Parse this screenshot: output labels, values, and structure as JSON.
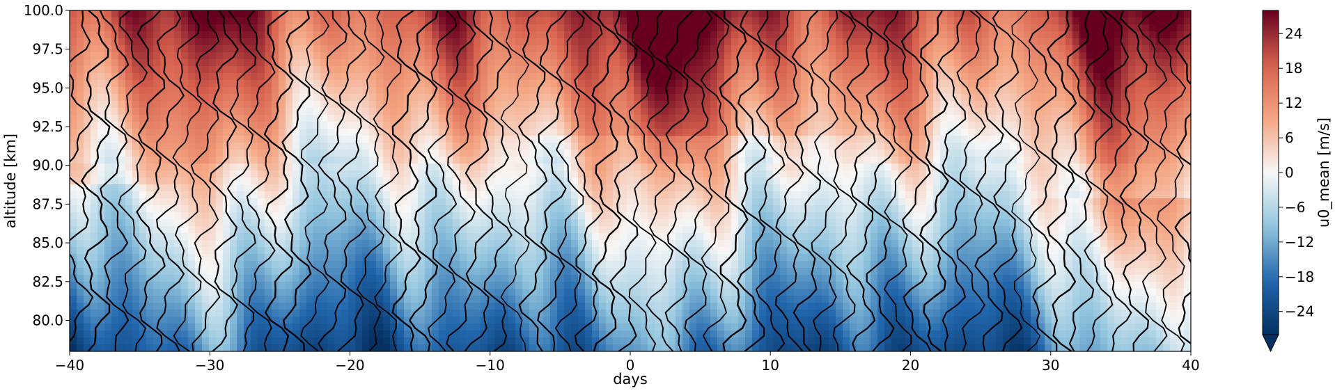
{
  "chart_data": {
    "type": "heatmap",
    "title": "",
    "xlabel": "days",
    "ylabel": "altitude [km]",
    "colorbar_label": "u0_mean [m/s]",
    "xlim": [
      -40,
      40
    ],
    "ylim": [
      78,
      100
    ],
    "x_ticks": [
      -40,
      -30,
      -20,
      -10,
      0,
      10,
      20,
      30,
      40
    ],
    "x_tick_labels": [
      "−40",
      "−30",
      "−20",
      "−10",
      "0",
      "10",
      "20",
      "30",
      "40"
    ],
    "y_ticks": [
      80.0,
      82.5,
      85.0,
      87.5,
      90.0,
      92.5,
      95.0,
      97.5,
      100.0
    ],
    "y_tick_labels": [
      "80.0",
      "82.5",
      "85.0",
      "87.5",
      "90.0",
      "92.5",
      "95.0",
      "97.5",
      "100.0"
    ],
    "colorbar_range": [
      -28,
      28
    ],
    "colorbar_ticks": [
      -24,
      -18,
      -12,
      -6,
      0,
      6,
      12,
      18,
      24
    ],
    "colorbar_tick_labels": [
      "−24",
      "−18",
      "−12",
      "−6",
      "0",
      "6",
      "12",
      "18",
      "24"
    ],
    "colormap": "RdBu_r",
    "colorbar_extend": "min",
    "grid": false,
    "overlay": "black contour lines of a second field, thicker lines for larger values",
    "colors": {
      "min": "#053061",
      "low": "#2166ac",
      "mid_low": "#92c5de",
      "zero": "#f7f7f7",
      "mid_high": "#f4a582",
      "high": "#d6604d",
      "max": "#67001f"
    }
  }
}
